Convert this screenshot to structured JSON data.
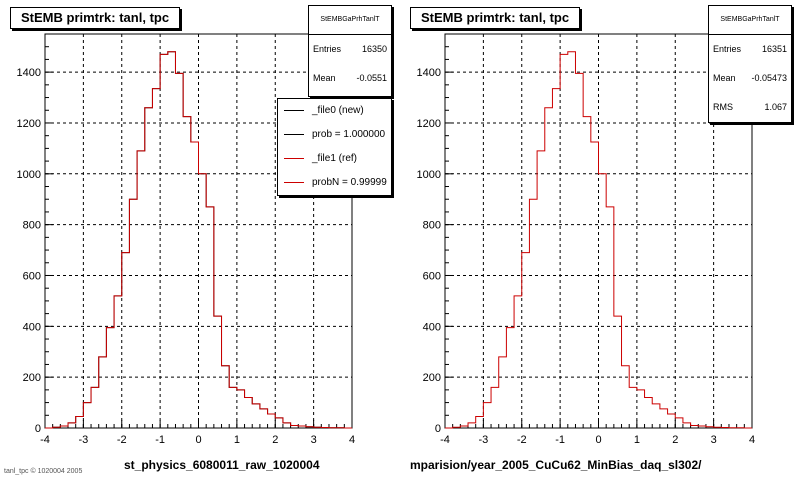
{
  "colors": {
    "hist_new": "#000000",
    "hist_ref": "#cc0000",
    "grid": "#000000"
  },
  "panels": [
    {
      "title": "StEMB primtrk: tanl, tpc",
      "stats": {
        "name": "StEMBGaPrhTanlT",
        "rows": [
          {
            "k": "Entries",
            "v": "16350"
          },
          {
            "k": "Mean",
            "v": "-0.0551"
          }
        ]
      },
      "legend": [
        {
          "label": "_file0 (new)",
          "color": "#000000"
        },
        {
          "label": "prob = 1.000000",
          "color": "#000000"
        },
        {
          "label": "_file1 (ref)",
          "color": "#cc0000"
        },
        {
          "label": "probN = 0.99999",
          "color": "#cc0000"
        }
      ],
      "xname": "st_physics_6080011_raw_1020004"
    },
    {
      "title": "StEMB primtrk: tanl, tpc",
      "stats": {
        "name": "StEMBGaPrhTanlT",
        "rows": [
          {
            "k": "Entries",
            "v": "16351"
          },
          {
            "k": "Mean",
            "v": "-0.05473"
          },
          {
            "k": "RMS",
            "v": "1.067"
          }
        ]
      },
      "legend": [],
      "xname": "mparision/year_2005_CuCu62_MinBias_daq_sl302/"
    }
  ],
  "footer": "tanl_tpc  © 1020004 2005",
  "chart_data": [
    {
      "type": "histogram",
      "title": "StEMB primtrk: tanl, tpc",
      "xlabel": "st_physics_6080011_raw_1020004",
      "ylabel": "",
      "xlim": [
        -4,
        4
      ],
      "ylim": [
        0,
        1550
      ],
      "xticks": [
        -4,
        -3,
        -2,
        -1,
        0,
        1,
        2,
        3,
        4
      ],
      "yticks": [
        0,
        200,
        400,
        600,
        800,
        1000,
        1200,
        1400
      ],
      "grid": true,
      "bin_edges": [
        -4,
        -3.8,
        -3.6,
        -3.4,
        -3.2,
        -3.0,
        -2.8,
        -2.6,
        -2.4,
        -2.2,
        -2.0,
        -1.8,
        -1.6,
        -1.4,
        -1.2,
        -1.0,
        -0.8,
        -0.6,
        -0.4,
        -0.2,
        0.0,
        0.2,
        0.4,
        0.6,
        0.8,
        1.0,
        1.2,
        1.4,
        1.6,
        1.8,
        2.0,
        2.2,
        2.4,
        2.6,
        2.8,
        3.0,
        3.2,
        3.4,
        3.6,
        3.8,
        4.0
      ],
      "series": [
        {
          "name": "_file0 (new)",
          "values": [
            0,
            3,
            8,
            20,
            45,
            100,
            160,
            280,
            395,
            520,
            690,
            900,
            1090,
            1260,
            1335,
            1470,
            1480,
            1395,
            1225,
            1125,
            1000,
            870,
            440,
            245,
            160,
            150,
            120,
            95,
            75,
            55,
            40,
            20,
            10,
            8,
            5,
            3,
            2,
            1,
            1,
            0
          ]
        },
        {
          "name": "_file1 (ref)",
          "values": [
            0,
            3,
            8,
            20,
            45,
            100,
            160,
            280,
            395,
            520,
            690,
            900,
            1090,
            1260,
            1335,
            1470,
            1480,
            1395,
            1225,
            1125,
            1000,
            870,
            440,
            245,
            160,
            150,
            120,
            95,
            75,
            55,
            40,
            20,
            10,
            8,
            5,
            3,
            2,
            1,
            1,
            0
          ]
        }
      ]
    },
    {
      "type": "histogram",
      "title": "StEMB primtrk: tanl, tpc",
      "xlabel": "mparision/year_2005_CuCu62_MinBias_daq_sl302/",
      "ylabel": "",
      "xlim": [
        -4,
        4
      ],
      "ylim": [
        0,
        1550
      ],
      "xticks": [
        -4,
        -3,
        -2,
        -1,
        0,
        1,
        2,
        3,
        4
      ],
      "yticks": [
        0,
        200,
        400,
        600,
        800,
        1000,
        1200,
        1400
      ],
      "grid": true,
      "bin_edges": [
        -4,
        -3.8,
        -3.6,
        -3.4,
        -3.2,
        -3.0,
        -2.8,
        -2.6,
        -2.4,
        -2.2,
        -2.0,
        -1.8,
        -1.6,
        -1.4,
        -1.2,
        -1.0,
        -0.8,
        -0.6,
        -0.4,
        -0.2,
        0.0,
        0.2,
        0.4,
        0.6,
        0.8,
        1.0,
        1.2,
        1.4,
        1.6,
        1.8,
        2.0,
        2.2,
        2.4,
        2.6,
        2.8,
        3.0,
        3.2,
        3.4,
        3.6,
        3.8,
        4.0
      ],
      "series": [
        {
          "name": "",
          "values": [
            0,
            3,
            8,
            20,
            45,
            100,
            160,
            280,
            395,
            520,
            690,
            900,
            1090,
            1260,
            1335,
            1470,
            1480,
            1395,
            1225,
            1125,
            1000,
            870,
            440,
            245,
            160,
            150,
            120,
            95,
            75,
            55,
            40,
            20,
            10,
            8,
            5,
            3,
            2,
            1,
            1,
            0
          ]
        }
      ]
    }
  ]
}
